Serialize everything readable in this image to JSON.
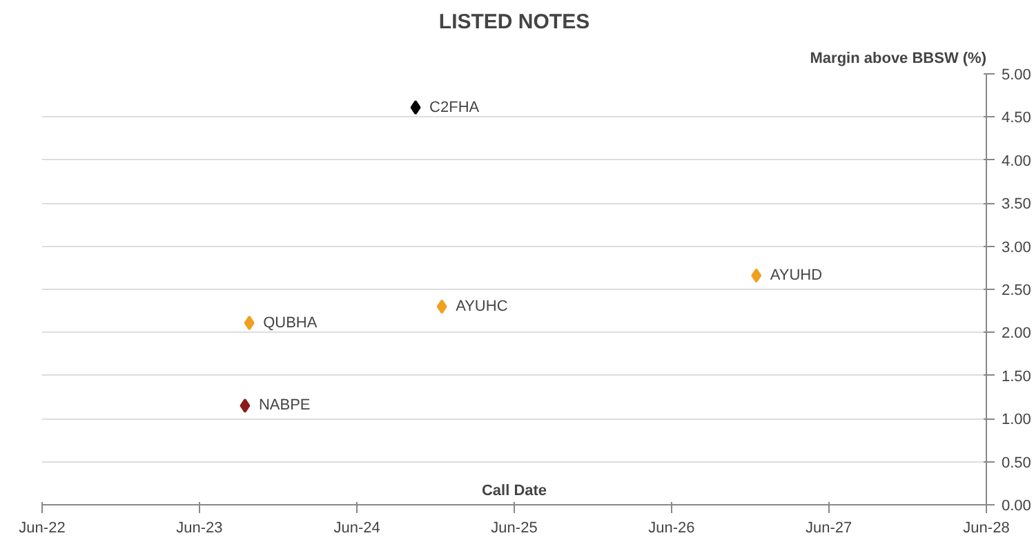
{
  "chart_data": {
    "type": "scatter",
    "title": "LISTED NOTES",
    "xlabel": "Call Date",
    "ylabel": "Margin above BBSW (%)",
    "x": [
      "2024-10-15",
      "2024-12-15",
      "2023-09-25",
      "2023-09-15",
      "2026-12-15"
    ],
    "values": [
      4.61,
      2.3,
      2.11,
      1.15,
      2.66
    ],
    "colors": [
      "#000000",
      "#f0a020",
      "#f0a020",
      "#8b1a1a",
      "#f0a020"
    ],
    "marker": "diamond",
    "grid": "y",
    "xlim": [
      "2022-06-01",
      "2028-06-01"
    ],
    "xticks": [
      {
        "value": "2022-06-01",
        "label": "Jun-22"
      },
      {
        "value": "2023-06-01",
        "label": "Jun-23"
      },
      {
        "value": "2024-06-01",
        "label": "Jun-24"
      },
      {
        "value": "2025-06-01",
        "label": "Jun-25"
      },
      {
        "value": "2026-06-01",
        "label": "Jun-26"
      },
      {
        "value": "2027-06-01",
        "label": "Jun-27"
      },
      {
        "value": "2028-06-01",
        "label": "Jun-28"
      }
    ],
    "ylim": [
      0,
      5
    ],
    "yticks": [
      {
        "value": 0,
        "label": "0.00"
      },
      {
        "value": 0.5,
        "label": "0.50"
      },
      {
        "value": 1,
        "label": "1.00"
      },
      {
        "value": 1.5,
        "label": "1.50"
      },
      {
        "value": 2,
        "label": "2.00"
      },
      {
        "value": 2.5,
        "label": "2.50"
      },
      {
        "value": 3,
        "label": "3.00"
      },
      {
        "value": 3.5,
        "label": "3.50"
      },
      {
        "value": 4,
        "label": "4.00"
      },
      {
        "value": 4.5,
        "label": "4.50"
      },
      {
        "value": 5,
        "label": "5.00"
      }
    ],
    "annotations": [
      {
        "text": "C2FHA",
        "x": "2024-10-15",
        "y": 4.61
      },
      {
        "text": "AYUHC",
        "x": "2024-12-15",
        "y": 2.3
      },
      {
        "text": "QUBHA",
        "x": "2023-09-25",
        "y": 2.11
      },
      {
        "text": "NABPE",
        "x": "2023-09-15",
        "y": 1.15
      },
      {
        "text": "AYUHD",
        "x": "2026-12-15",
        "y": 2.66
      }
    ]
  }
}
